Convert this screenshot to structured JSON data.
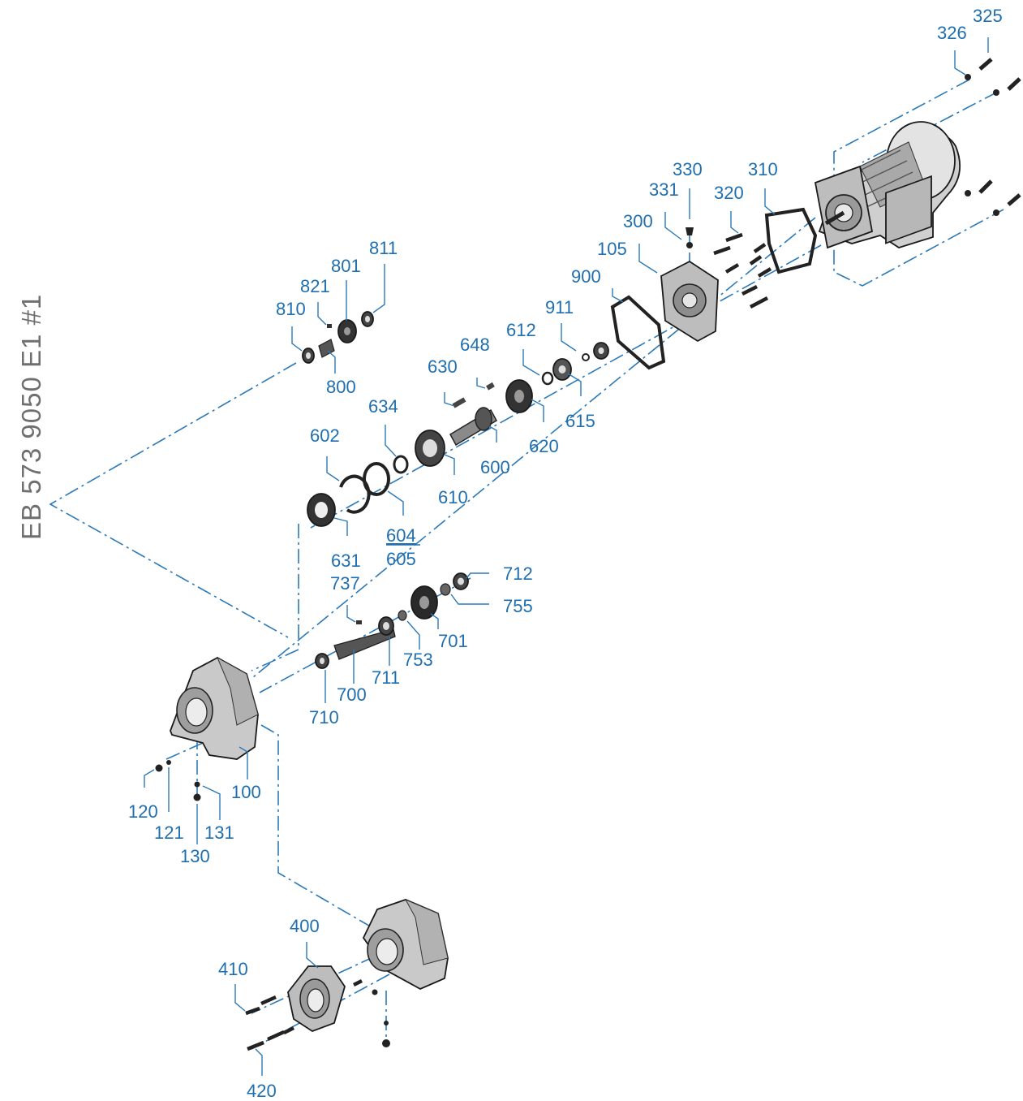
{
  "document_id": "EB 573 9050 E1 #1",
  "colors": {
    "label": "#1f6fb0",
    "axis_line": "#2b79b8",
    "part_dark": "#2a2a2a",
    "part_mid": "#777777",
    "housing": "#c9c9c9"
  },
  "part_numbers": {
    "p325": "325",
    "p326": "326",
    "p330": "330",
    "p331": "331",
    "p310": "310",
    "p320": "320",
    "p300": "300",
    "p105": "105",
    "p900": "900",
    "p911": "911",
    "p612": "612",
    "p615": "615",
    "p620": "620",
    "p648": "648",
    "p630": "630",
    "p600": "600",
    "p634": "634",
    "p610": "610",
    "p602": "602",
    "p604": "604",
    "p605": "605",
    "p631": "631",
    "p811": "811",
    "p801": "801",
    "p821": "821",
    "p810": "810",
    "p800": "800",
    "p737": "737",
    "p712": "712",
    "p755": "755",
    "p701": "701",
    "p753": "753",
    "p711": "711",
    "p700": "700",
    "p710": "710",
    "p100": "100",
    "p120": "120",
    "p121": "121",
    "p131": "131",
    "p130": "130",
    "p400": "400",
    "p410": "410",
    "p420": "420"
  }
}
